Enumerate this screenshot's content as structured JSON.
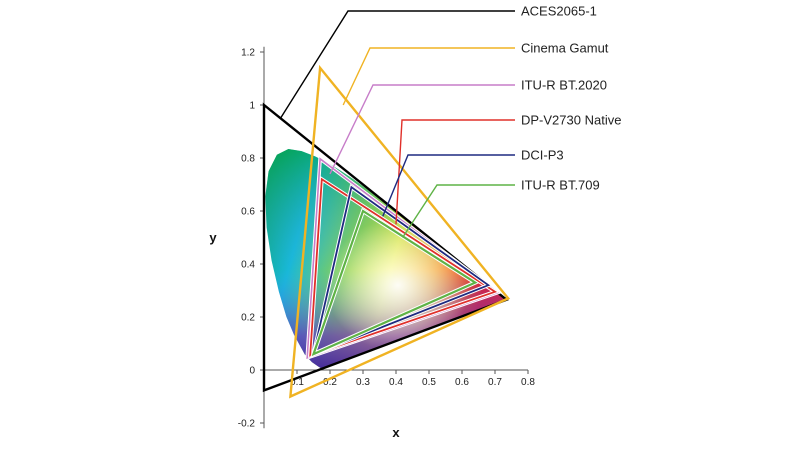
{
  "diagram": {
    "x_axis_label": "x",
    "y_axis_label": "y",
    "x_ticks": [
      "0.1",
      "0.2",
      "0.3",
      "0.4",
      "0.5",
      "0.6",
      "0.7",
      "0.8"
    ],
    "y_ticks": [
      "-0.2",
      "0",
      "0.2",
      "0.4",
      "0.6",
      "0.8",
      "1",
      "1.2"
    ],
    "x_tick_values": [
      0.1,
      0.2,
      0.3,
      0.4,
      0.5,
      0.6,
      0.7,
      0.8
    ],
    "y_tick_values": [
      -0.2,
      0,
      0.2,
      0.4,
      0.6,
      0.8,
      1,
      1.2
    ],
    "gamuts": [
      {
        "name": "ACES2065-1",
        "color": "#000000",
        "points": [
          [
            0.7347,
            0.2653
          ],
          [
            0.0,
            1.0
          ],
          [
            0.0001,
            -0.077
          ]
        ]
      },
      {
        "name": "Cinema Gamut",
        "color": "#f0b323",
        "points": [
          [
            0.74,
            0.27
          ],
          [
            0.17,
            1.14
          ],
          [
            0.08,
            -0.1
          ]
        ]
      },
      {
        "name": "ITU-R BT.2020",
        "color": "#c77dc9",
        "points": [
          [
            0.708,
            0.292
          ],
          [
            0.17,
            0.797
          ],
          [
            0.131,
            0.046
          ]
        ]
      },
      {
        "name": "DP-V2730 Native",
        "color": "#e0302a",
        "points": [
          [
            0.7,
            0.295
          ],
          [
            0.175,
            0.72
          ],
          [
            0.14,
            0.055
          ]
        ]
      },
      {
        "name": "DCI-P3",
        "color": "#1e2a80",
        "points": [
          [
            0.68,
            0.32
          ],
          [
            0.265,
            0.69
          ],
          [
            0.15,
            0.06
          ]
        ]
      },
      {
        "name": "ITU-R BT.709",
        "color": "#5fb346",
        "points": [
          [
            0.64,
            0.33
          ],
          [
            0.3,
            0.6
          ],
          [
            0.15,
            0.06
          ]
        ]
      }
    ]
  }
}
